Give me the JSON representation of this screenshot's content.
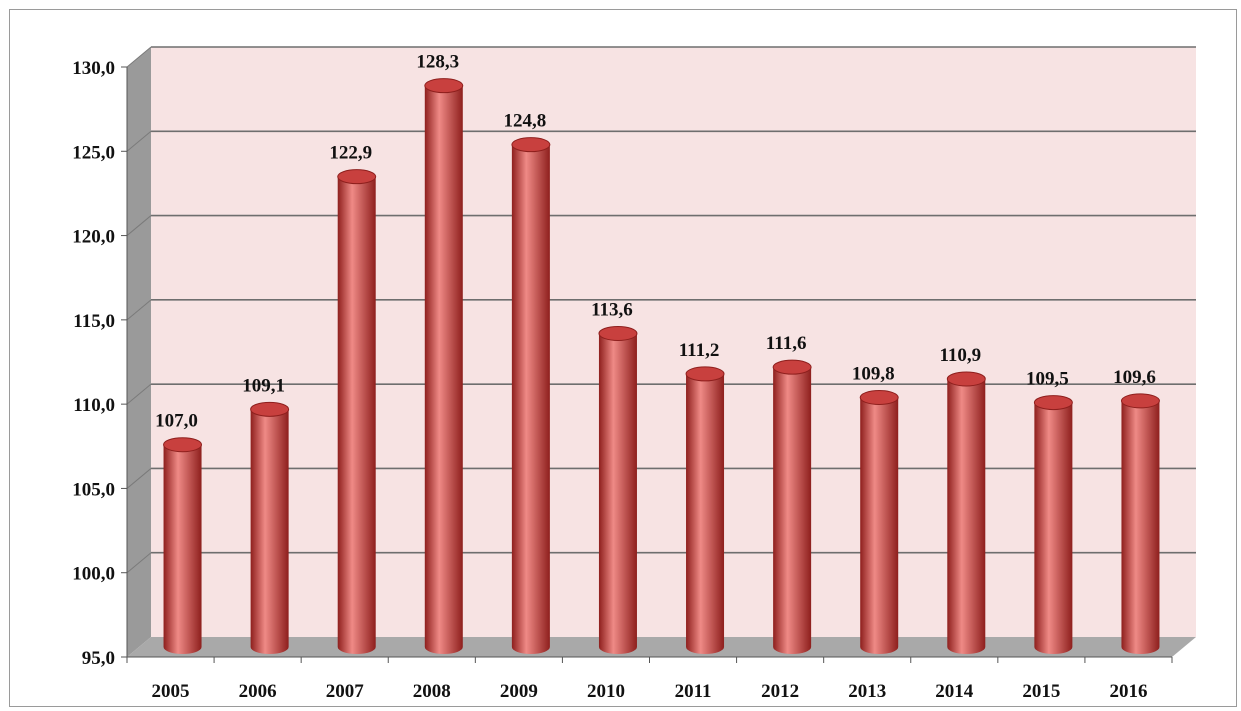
{
  "chart_data": {
    "type": "bar",
    "title": "",
    "xlabel": "",
    "ylabel": "",
    "categories": [
      "2005",
      "2006",
      "2007",
      "2008",
      "2009",
      "2010",
      "2011",
      "2012",
      "2013",
      "2014",
      "2015",
      "2016"
    ],
    "values": [
      107.0,
      109.1,
      122.9,
      128.3,
      124.8,
      113.6,
      111.2,
      111.6,
      109.8,
      110.9,
      109.5,
      109.6
    ],
    "value_labels": [
      "107,0",
      "109,1",
      "122,9",
      "128,3",
      "124,8",
      "113,6",
      "111,2",
      "111,6",
      "109,8",
      "110,9",
      "109,5",
      "109,6"
    ],
    "ylim": [
      95,
      130
    ],
    "y_ticks": [
      95,
      100,
      105,
      110,
      115,
      120,
      125,
      130
    ],
    "y_tick_labels": [
      "95,0",
      "100,0",
      "105,0",
      "110,0",
      "115,0",
      "120,0",
      "125,0",
      "130,0"
    ],
    "grid": true,
    "legend": "none",
    "style": "3d-cylinder"
  },
  "colors": {
    "bar": "#c8403e",
    "bar_light": "#ef8a86",
    "bar_dark": "#8e1f1d",
    "plot_background": "#f7e3e3",
    "side_wall": "#9a9a9a",
    "floor": "#a9a9a9",
    "gridline": "#6e6e6e"
  }
}
